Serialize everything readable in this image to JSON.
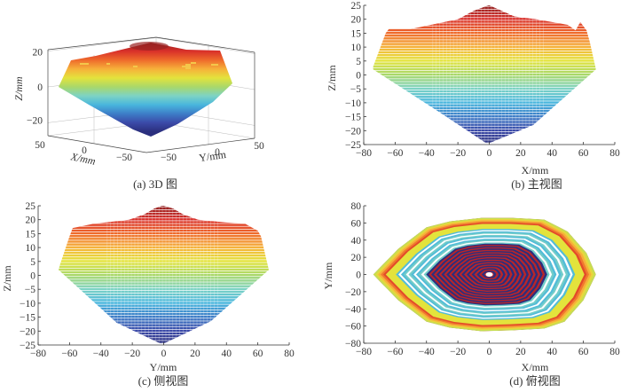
{
  "figure": {
    "captions": [
      "(a) 3D 图",
      "(b) 主视图",
      "(c) 侧视图",
      "(d) 俯视图"
    ]
  },
  "colormap": [
    "#2b2f7e",
    "#3b4aa8",
    "#3d7dc7",
    "#49b6dd",
    "#7dd3c4",
    "#a9d86a",
    "#e3e33c",
    "#f6b13a",
    "#ee6a2b",
    "#d9302a",
    "#8e1f1f"
  ],
  "chart_data": [
    {
      "id": "a",
      "type": "surface3d",
      "title": "(a) 3D 图",
      "xlabel": "X/mm",
      "ylabel": "Y/mm",
      "zlabel": "Z/mm",
      "x_ticks": [
        50,
        0,
        -50
      ],
      "y_ticks": [
        -50,
        0,
        50
      ],
      "z_ticks": [
        20,
        0,
        -20
      ],
      "xlim": [
        -75,
        68
      ],
      "ylim": [
        -68,
        68
      ],
      "zlim": [
        -25,
        25
      ],
      "description": "Inverted hexagonal-pyramid shaped point cloud surface, colored by Z (blue at bottom -25, red at top ~17-25)"
    },
    {
      "id": "b",
      "type": "scatter",
      "title": "(b) 主视图",
      "xlabel": "X/mm",
      "ylabel": "Z/mm",
      "xlim": [
        -80,
        80
      ],
      "ylim": [
        -25,
        25
      ],
      "x_ticks": [
        -80,
        -60,
        -40,
        -20,
        0,
        20,
        40,
        60,
        80
      ],
      "y_ticks": [
        -25,
        -20,
        -15,
        -10,
        -5,
        0,
        5,
        10,
        15,
        20,
        25
      ],
      "outline": {
        "x": [
          -0.5,
          0,
          8,
          16,
          30,
          50,
          55,
          58,
          62,
          64,
          68,
          28,
          0,
          -2,
          -30,
          -74,
          -74,
          -66,
          -64,
          -50,
          -20,
          -10
        ],
        "z": [
          25,
          25,
          23,
          21,
          20,
          18,
          16,
          19,
          16,
          12,
          2,
          -18,
          -24.5,
          -24.5,
          -14,
          2,
          3,
          15,
          16.5,
          16.5,
          20,
          23
        ]
      },
      "grid": false
    },
    {
      "id": "c",
      "type": "scatter",
      "title": "(c) 侧视图",
      "xlabel": "Y/mm",
      "ylabel": "Z/mm",
      "xlim": [
        -80,
        80
      ],
      "ylim": [
        -25,
        25
      ],
      "x_ticks": [
        -80,
        -60,
        -40,
        -20,
        0,
        20,
        40,
        60,
        80
      ],
      "y_ticks": [
        -25,
        -20,
        -15,
        -10,
        -5,
        0,
        5,
        10,
        15,
        20,
        25
      ],
      "outline": {
        "x": [
          -1,
          0,
          6,
          12,
          22,
          40,
          52,
          60,
          62,
          67,
          30,
          0,
          -2,
          -30,
          -67,
          -66,
          -60,
          -58,
          -45,
          -22,
          -12,
          -6
        ],
        "z": [
          25,
          25,
          24,
          22,
          20,
          19,
          18.5,
          16,
          14,
          2,
          -16.5,
          -24.5,
          -24.5,
          -17,
          2,
          4,
          14,
          17,
          18.5,
          20,
          22,
          24
        ]
      },
      "grid": false
    },
    {
      "id": "d",
      "type": "scatter",
      "title": "(d) 俯视图",
      "xlabel": "X/mm",
      "ylabel": "Y/mm",
      "xlim": [
        -80,
        80
      ],
      "ylim": [
        -80,
        80
      ],
      "x_ticks": [
        -80,
        -60,
        -40,
        -20,
        0,
        20,
        40,
        60,
        80
      ],
      "y_ticks": [
        -80,
        -60,
        -40,
        -20,
        0,
        20,
        40,
        60,
        80
      ],
      "outline": {
        "x": [
          -74,
          -58,
          -40,
          -25,
          -5,
          15,
          35,
          50,
          62,
          68,
          60,
          48,
          35,
          15,
          -5,
          -25,
          -40,
          -58
        ],
        "y": [
          0,
          30,
          55,
          62,
          66,
          66,
          64,
          50,
          25,
          0,
          -30,
          -55,
          -63,
          -65,
          -66,
          -62,
          -55,
          -30
        ]
      },
      "center": [
        0,
        0
      ],
      "description": "Top view: concentric hexagonal contours, colored by Z (outer ring red/yellow, inner dark red/blue rings)",
      "grid": false
    }
  ]
}
